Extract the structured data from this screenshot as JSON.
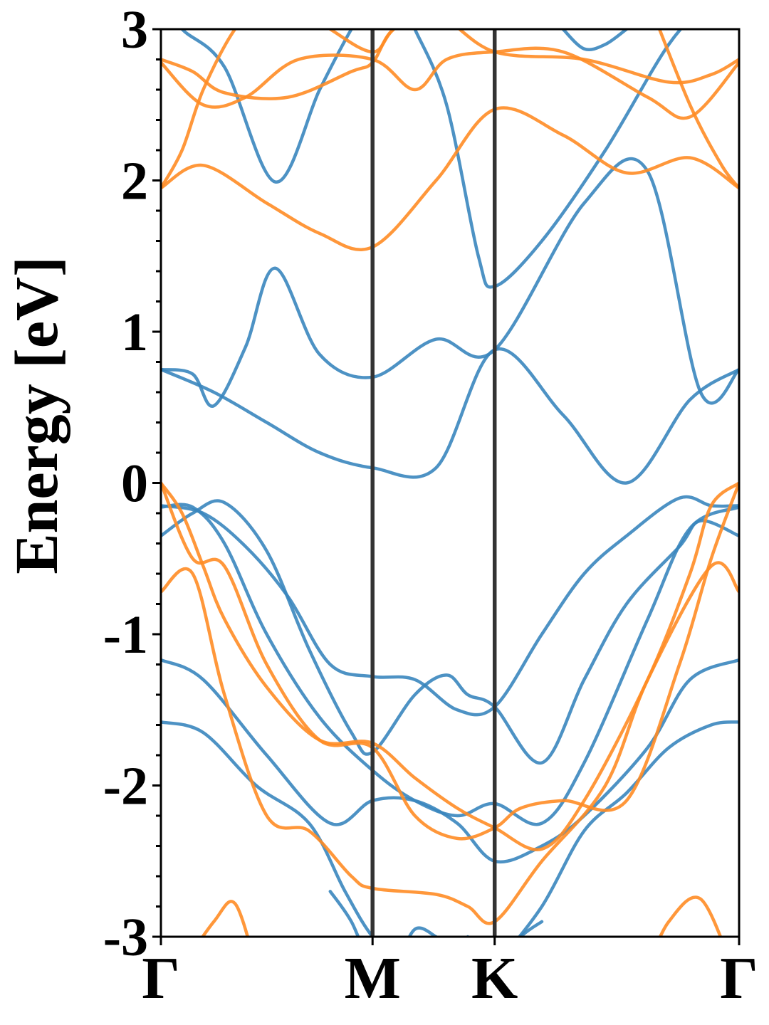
{
  "chart_data": {
    "type": "line",
    "title": "",
    "xlabel": "",
    "ylabel": "Energy [eV]",
    "ylim": [
      -3,
      3
    ],
    "yticks": [
      -3,
      -2,
      -1,
      0,
      1,
      2,
      3
    ],
    "ytick_labels": [
      "-3",
      "-2",
      "-1",
      "0",
      "1",
      "2",
      "3"
    ],
    "yminor_step": 0.2,
    "xlim": [
      0,
      2.732
    ],
    "xticks": [
      0,
      1.0,
      1.577,
      2.732
    ],
    "xtick_labels": [
      "Γ",
      "M",
      "K",
      "Γ"
    ],
    "vlines": [
      1.0,
      1.577
    ],
    "grid": false,
    "colors": {
      "spin_up": "#3a86be",
      "spin_down": "#ff8c25",
      "axis": "#000000",
      "vline": "#333333"
    },
    "series": [
      {
        "color": "#3a86be",
        "x": [
          0,
          0.25,
          0.5,
          0.75,
          1.0,
          1.3,
          1.577,
          1.9,
          2.2,
          2.5,
          2.732
        ],
        "y": [
          0.75,
          0.6,
          0.4,
          0.2,
          0.1,
          0.1,
          0.88,
          0.45,
          0.0,
          0.55,
          0.75
        ]
      },
      {
        "color": "#3a86be",
        "x": [
          0,
          0.15,
          0.25,
          0.4,
          0.54,
          0.75,
          1.0,
          1.3,
          1.577,
          2.0,
          2.3,
          2.55,
          2.732
        ],
        "y": [
          0.75,
          0.72,
          0.51,
          0.9,
          1.42,
          0.85,
          0.7,
          0.95,
          0.88,
          1.85,
          2.06,
          0.6,
          0.75
        ]
      },
      {
        "color": "#3a86be",
        "x": [
          0,
          0.1,
          0.3,
          0.54,
          0.75,
          0.9,
          1.0
        ],
        "y": [
          3.2,
          3.0,
          2.75,
          1.99,
          2.6,
          3.0,
          3.2
        ]
      },
      {
        "color": "#3a86be",
        "x": [
          1.2,
          1.35,
          1.5,
          1.577,
          1.8,
          2.1,
          2.4,
          2.6
        ],
        "y": [
          3.0,
          2.5,
          1.5,
          1.3,
          1.6,
          2.2,
          2.9,
          3.2
        ]
      },
      {
        "color": "#3a86be",
        "x": [
          1.9,
          2.0,
          2.1,
          2.2
        ],
        "y": [
          3.0,
          2.87,
          2.9,
          3.0
        ]
      },
      {
        "color": "#3a86be",
        "x": [
          0,
          0.2,
          0.4,
          0.6,
          0.8,
          1.0,
          1.2,
          1.4,
          1.577,
          1.8,
          2.0,
          2.2,
          2.45,
          2.6,
          2.732
        ],
        "y": [
          -0.15,
          -0.2,
          -0.42,
          -0.75,
          -1.2,
          -1.28,
          -1.3,
          -1.5,
          -1.48,
          -1.0,
          -0.6,
          -0.35,
          -0.1,
          -0.15,
          -0.15
        ]
      },
      {
        "color": "#3a86be",
        "x": [
          0,
          0.15,
          0.3,
          0.5,
          0.7,
          0.9,
          1.0,
          1.2,
          1.35,
          1.45,
          1.577,
          1.8,
          2.0,
          2.2,
          2.45,
          2.55,
          2.732
        ],
        "y": [
          -0.35,
          -0.2,
          -0.13,
          -0.45,
          -1.1,
          -1.65,
          -1.78,
          -1.4,
          -1.27,
          -1.4,
          -1.48,
          -1.85,
          -1.3,
          -0.8,
          -0.42,
          -0.25,
          -0.35
        ]
      },
      {
        "color": "#3a86be",
        "x": [
          0,
          0.15,
          0.3,
          0.5,
          0.75,
          1.0,
          1.2,
          1.4,
          1.577,
          1.8,
          2.0,
          2.3,
          2.5,
          2.732
        ],
        "y": [
          -0.16,
          -0.16,
          -0.4,
          -1.0,
          -1.55,
          -1.9,
          -2.1,
          -2.2,
          -2.12,
          -2.25,
          -1.85,
          -0.9,
          -0.3,
          -0.16
        ]
      },
      {
        "color": "#3a86be",
        "x": [
          0,
          0.2,
          0.5,
          0.8,
          1.0,
          1.2,
          1.4,
          1.577,
          1.8,
          2.0,
          2.3,
          2.5,
          2.732
        ],
        "y": [
          -1.17,
          -1.3,
          -1.8,
          -2.25,
          -2.1,
          -2.1,
          -2.25,
          -2.5,
          -2.4,
          -2.2,
          -1.75,
          -1.3,
          -1.17
        ]
      },
      {
        "color": "#3a86be",
        "x": [
          0,
          0.2,
          0.45,
          0.7,
          0.87,
          1.0,
          1.15,
          1.3,
          1.45
        ],
        "y": [
          -1.58,
          -1.65,
          -2.0,
          -2.25,
          -2.7,
          -3.0,
          -3.2,
          -3.2,
          -3.0
        ]
      },
      {
        "color": "#3a86be",
        "x": [
          1.577,
          1.8,
          2.0,
          2.2,
          2.4,
          2.6,
          2.732
        ],
        "y": [
          -3.2,
          -2.8,
          -2.3,
          -2.05,
          -1.75,
          -1.6,
          -1.58
        ]
      },
      {
        "color": "#3a86be",
        "x": [
          0.8,
          0.9,
          1.0,
          1.1,
          1.2,
          1.3
        ],
        "y": [
          -2.7,
          -2.9,
          -3.2,
          -3.2,
          -2.95,
          -3.0
        ]
      },
      {
        "color": "#3a86be",
        "x": [
          1.3,
          1.4,
          1.5,
          1.577,
          1.7,
          1.8
        ],
        "y": [
          -3.05,
          -3.2,
          -3.2,
          -3.2,
          -3.0,
          -2.9
        ]
      },
      {
        "color": "#ff8c25",
        "x": [
          0,
          0.1,
          0.2,
          0.3,
          0.5,
          0.75,
          1.0,
          1.2,
          1.4,
          1.577,
          1.8,
          2.0,
          2.3,
          2.5,
          2.6,
          2.732
        ],
        "y": [
          0.0,
          -0.2,
          -0.55,
          -0.9,
          -1.35,
          -1.7,
          -1.72,
          -1.95,
          -2.15,
          -2.28,
          -2.42,
          -2.1,
          -1.3,
          -0.6,
          -0.15,
          0.0
        ]
      },
      {
        "color": "#ff8c25",
        "x": [
          0,
          0.15,
          0.3,
          0.5,
          0.75,
          1.0,
          1.2,
          1.4,
          1.577,
          1.7,
          1.9,
          2.2,
          2.45,
          2.6,
          2.732
        ],
        "y": [
          0.0,
          -0.5,
          -0.55,
          -1.2,
          -1.7,
          -1.75,
          -2.2,
          -2.35,
          -2.28,
          -2.15,
          -2.1,
          -2.1,
          -1.2,
          -0.5,
          0.0
        ]
      },
      {
        "color": "#ff8c25",
        "x": [
          0,
          0.15,
          0.3,
          0.5,
          0.7,
          0.9,
          1.0,
          1.3,
          1.45,
          1.577,
          1.8,
          2.1,
          2.3,
          2.6,
          2.732
        ],
        "y": [
          -0.72,
          -0.6,
          -1.4,
          -2.2,
          -2.3,
          -2.6,
          -2.68,
          -2.72,
          -2.8,
          -2.9,
          -2.5,
          -2.0,
          -1.3,
          -0.55,
          -0.72
        ]
      },
      {
        "color": "#ff8c25",
        "x": [
          0.1,
          0.25,
          0.35,
          0.45
        ],
        "y": [
          -3.2,
          -2.9,
          -2.78,
          -3.2
        ]
      },
      {
        "color": "#ff8c25",
        "x": [
          2.3,
          2.4,
          2.55,
          2.7
        ],
        "y": [
          -3.2,
          -2.9,
          -2.75,
          -3.2
        ]
      },
      {
        "color": "#ff8c25",
        "x": [
          0,
          0.2,
          0.5,
          0.75,
          1.0,
          1.3,
          1.577,
          1.9,
          2.2,
          2.5,
          2.732
        ],
        "y": [
          1.95,
          2.1,
          1.85,
          1.65,
          1.56,
          2.0,
          2.47,
          2.3,
          2.05,
          2.15,
          1.95
        ]
      },
      {
        "color": "#ff8c25",
        "x": [
          0,
          0.1,
          0.2,
          0.35,
          0.5
        ],
        "y": [
          1.95,
          2.2,
          2.6,
          3.0,
          3.2
        ]
      },
      {
        "color": "#ff8c25",
        "x": [
          2.3,
          2.5,
          2.65,
          2.732
        ],
        "y": [
          3.2,
          2.5,
          2.1,
          1.95
        ]
      },
      {
        "color": "#ff8c25",
        "x": [
          0,
          0.2,
          0.4,
          0.65,
          1.0,
          1.2,
          1.35,
          1.577,
          1.9,
          2.3,
          2.5,
          2.732
        ],
        "y": [
          2.78,
          2.5,
          2.55,
          2.8,
          2.8,
          2.6,
          2.8,
          2.85,
          2.85,
          2.55,
          2.42,
          2.78
        ]
      },
      {
        "color": "#ff8c25",
        "x": [
          0,
          0.15,
          0.3,
          0.6,
          0.9,
          1.0,
          1.1,
          1.3,
          1.577,
          2.0,
          2.4,
          2.6,
          2.732
        ],
        "y": [
          2.8,
          2.72,
          2.58,
          2.55,
          2.72,
          2.78,
          3.0,
          3.1,
          2.85,
          2.8,
          2.65,
          2.7,
          2.8
        ]
      },
      {
        "color": "#ff8c25",
        "x": [
          0.6,
          0.8,
          1.0,
          1.1,
          1.3
        ],
        "y": [
          3.2,
          3.0,
          2.85,
          3.0,
          3.2
        ]
      }
    ]
  }
}
